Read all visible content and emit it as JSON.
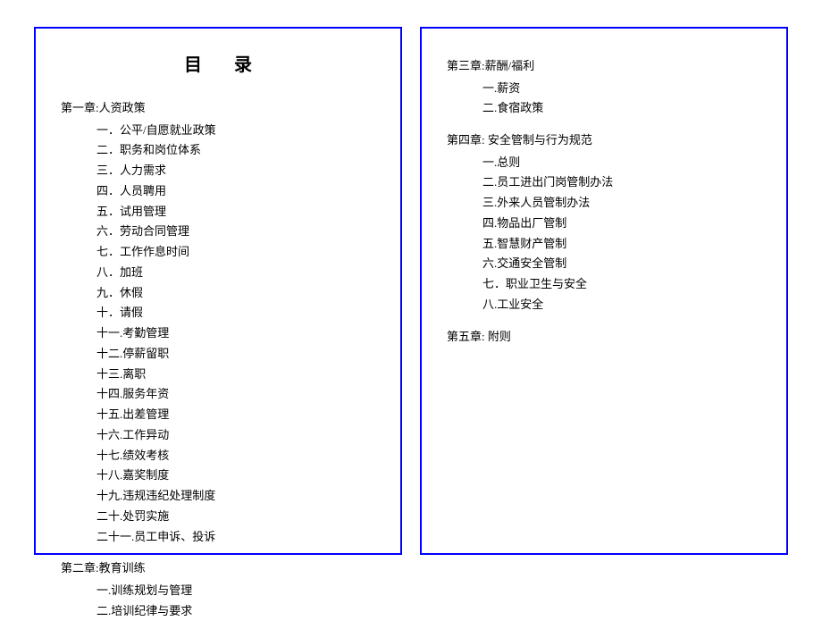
{
  "title": "目录",
  "border_color": "#0000ff",
  "background_color": "#ffffff",
  "text_color": "#000000",
  "title_fontsize": 20,
  "body_fontsize": 13,
  "font_family": "SimSun",
  "left_page": {
    "chapters": [
      {
        "label": "第一章:人资政策",
        "items": [
          "一．公平/自愿就业政策",
          "二．职务和岗位体系",
          "三．人力需求",
          "四．人员聘用",
          "五．试用管理",
          "六．劳动合同管理",
          "七．工作作息时间",
          "八．加班",
          "九．休假",
          "十．请假",
          "十一.考勤管理",
          "十二.停薪留职",
          "十三.离职",
          "十四.服务年资",
          "十五.出差管理",
          "十六.工作异动",
          "十七.绩效考核",
          "十八.嘉奖制度",
          "十九.违规违纪处理制度",
          "二十.处罚实施",
          "二十一.员工申诉、投诉"
        ]
      },
      {
        "label": "第二章:教育训练",
        "items": [
          "一.训练规划与管理",
          "二.培训纪律与要求"
        ]
      }
    ]
  },
  "right_page": {
    "chapters": [
      {
        "label": "第三章:薪酬/福利",
        "items": [
          "一.薪资",
          "二.食宿政策"
        ]
      },
      {
        "label": "第四章: 安全管制与行为规范",
        "items": [
          "一.总则",
          "二.员工进出门岗管制办法",
          "三.外来人员管制办法",
          "四.物品出厂管制",
          "五.智慧财产管制",
          "六.交通安全管制",
          "七．职业卫生与安全",
          "八.工业安全"
        ]
      },
      {
        "label": "第五章: 附则",
        "items": []
      }
    ]
  }
}
